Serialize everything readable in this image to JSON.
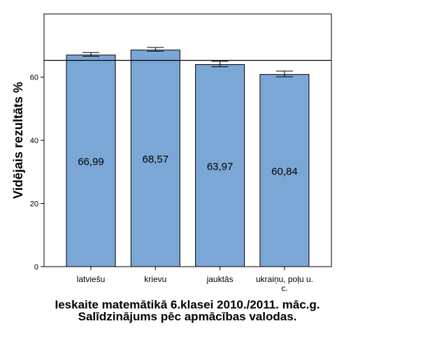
{
  "chart_data": {
    "type": "bar",
    "title": "Ieskaite matemātikā 6.klasei 2010./2011. māc.g. Salīdzinājums pēc apmācības valodas.",
    "xlabel": "",
    "ylabel": "Vidējais rezultāts %",
    "ylim": [
      0,
      80
    ],
    "yticks": [
      0,
      20,
      40,
      60
    ],
    "categories": [
      "latviešu",
      "krievu",
      "jauktās",
      "ukraiņu, poļu u. c."
    ],
    "values": [
      66.99,
      68.57,
      63.97,
      60.84
    ],
    "data_labels": [
      "66,99",
      "68,57",
      "63,97",
      "60,84"
    ],
    "error_bars": [
      [
        66.6,
        67.8
      ],
      [
        68.2,
        69.4
      ],
      [
        63.3,
        65.0
      ],
      [
        60.1,
        61.9
      ]
    ],
    "reference_line": 65.3,
    "grid": false,
    "bar_color": "#7ba7d6"
  }
}
